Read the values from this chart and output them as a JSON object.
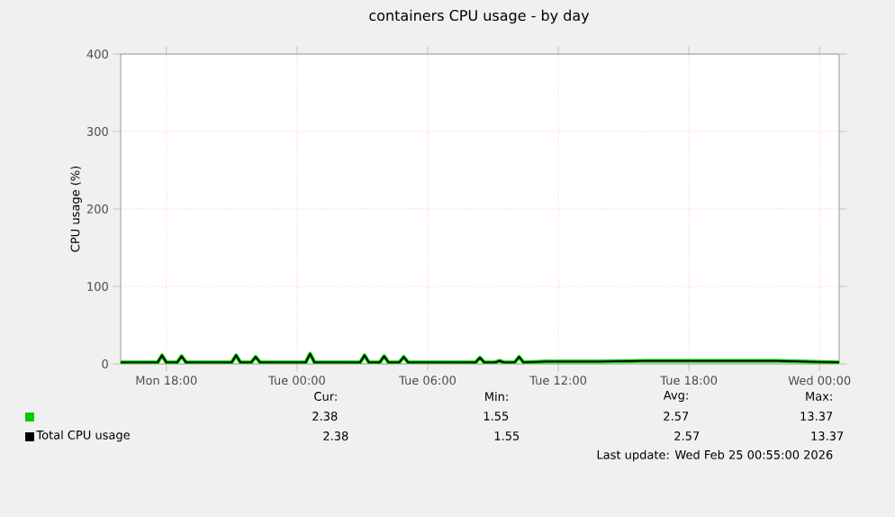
{
  "chart_data": {
    "type": "line",
    "title": "containers CPU usage - by day",
    "ylabel": "CPU usage (%)",
    "x": [
      "2026-02-23T15:54",
      "2026-02-23T17:36",
      "2026-02-23T17:48",
      "2026-02-23T18:00",
      "2026-02-23T18:30",
      "2026-02-23T18:42",
      "2026-02-23T18:54",
      "2026-02-23T21:00",
      "2026-02-23T21:12",
      "2026-02-23T21:24",
      "2026-02-23T21:54",
      "2026-02-23T22:06",
      "2026-02-23T22:18",
      "2026-02-24T00:24",
      "2026-02-24T00:36",
      "2026-02-24T00:48",
      "2026-02-24T02:54",
      "2026-02-24T03:06",
      "2026-02-24T03:18",
      "2026-02-24T03:48",
      "2026-02-24T04:00",
      "2026-02-24T04:12",
      "2026-02-24T04:42",
      "2026-02-24T04:54",
      "2026-02-24T05:06",
      "2026-02-24T08:12",
      "2026-02-24T08:24",
      "2026-02-24T08:36",
      "2026-02-24T09:06",
      "2026-02-24T09:18",
      "2026-02-24T09:30",
      "2026-02-24T10:00",
      "2026-02-24T10:12",
      "2026-02-24T10:24",
      "2026-02-24T11:24",
      "2026-02-24T13:18",
      "2026-02-24T13:54",
      "2026-02-24T16:00",
      "2026-02-24T18:00",
      "2026-02-24T20:00",
      "2026-02-24T22:00",
      "2026-02-25T00:54"
    ],
    "series": [
      {
        "color": "#00cc00",
        "values": [
          2,
          2,
          11,
          2,
          2,
          10,
          2,
          2,
          11,
          2,
          2,
          9,
          2,
          2,
          13,
          2,
          2,
          11,
          2,
          2,
          10,
          2,
          2,
          9,
          2,
          2,
          8,
          2,
          2,
          4,
          2,
          2,
          9,
          2,
          3,
          3,
          3,
          4,
          4,
          4,
          4,
          2
        ]
      },
      {
        "name": "Total CPU usage",
        "color": "#000000",
        "values": [
          2,
          2,
          11,
          2,
          2,
          10,
          2,
          2,
          11,
          2,
          2,
          9,
          2,
          2,
          13,
          2,
          2,
          11,
          2,
          2,
          10,
          2,
          2,
          9,
          2,
          2,
          8,
          2,
          2,
          4,
          2,
          2,
          9,
          2,
          3,
          3,
          3,
          4,
          4,
          4,
          4,
          2
        ]
      }
    ],
    "xlim": [
      "2026-02-23T15:54",
      "2026-02-25T00:54"
    ],
    "ylim": [
      0,
      400
    ],
    "xticks": [
      {
        "value": "2026-02-23T18:00",
        "label": "Mon 18:00"
      },
      {
        "value": "2026-02-24T00:00",
        "label": "Tue 00:00"
      },
      {
        "value": "2026-02-24T06:00",
        "label": "Tue 06:00"
      },
      {
        "value": "2026-02-24T12:00",
        "label": "Tue 12:00"
      },
      {
        "value": "2026-02-24T18:00",
        "label": "Tue 18:00"
      },
      {
        "value": "2026-02-25T00:00",
        "label": "Wed 00:00"
      }
    ],
    "yticks": [
      0,
      100,
      200,
      300,
      400
    ],
    "grid": true,
    "legend": "bottom",
    "marker": "none",
    "annotations": [
      "Cur:",
      "Min:",
      "Avg:",
      "Max:",
      "2.38",
      "1.55",
      "2.57",
      "13.37",
      "2.38",
      "1.55",
      "2.57",
      "13.37",
      "Last update: Wed Feb 25 00:55:00 2026"
    ]
  }
}
